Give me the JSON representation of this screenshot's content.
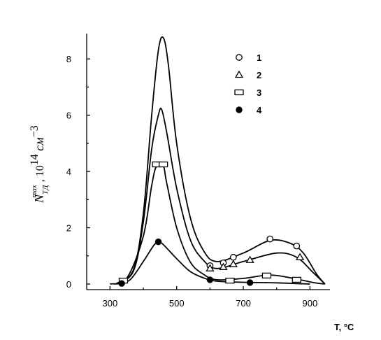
{
  "chart_data": {
    "type": "line",
    "xlabel": "T, °C",
    "ylabel": {
      "main": "N",
      "sub": "ТД",
      "sup": "max",
      "rest": " , 10",
      "exp": "14",
      "unit": " см",
      "unit_exp": "−3"
    },
    "xticks": [
      "300",
      "500",
      "700",
      "900"
    ],
    "xtick_values": [
      300,
      500,
      700,
      900
    ],
    "yticks": [
      "0",
      "2",
      "4",
      "6",
      "8"
    ],
    "ytick_values": [
      0,
      2,
      4,
      6,
      8
    ],
    "xlim": [
      230,
      960
    ],
    "ylim": [
      -0.2,
      8.9
    ],
    "legend_position": "top-right",
    "series": [
      {
        "name": "1",
        "marker": "circle-open",
        "points": [
          [
            600,
            0.65
          ],
          [
            640,
            0.75
          ],
          [
            670,
            0.95
          ],
          [
            780,
            1.6
          ],
          [
            860,
            1.35
          ]
        ],
        "curve": [
          [
            320,
            0.02
          ],
          [
            370,
            0.5
          ],
          [
            400,
            2.5
          ],
          [
            425,
            6.0
          ],
          [
            445,
            8.3
          ],
          [
            460,
            8.75
          ],
          [
            475,
            7.8
          ],
          [
            500,
            5.0
          ],
          [
            540,
            2.4
          ],
          [
            580,
            1.2
          ],
          [
            620,
            0.8
          ],
          [
            700,
            1.1
          ],
          [
            780,
            1.55
          ],
          [
            840,
            1.45
          ],
          [
            880,
            1.1
          ],
          [
            920,
            0.35
          ],
          [
            945,
            0.0
          ]
        ]
      },
      {
        "name": "2",
        "marker": "triangle-open",
        "points": [
          [
            600,
            0.55
          ],
          [
            640,
            0.6
          ],
          [
            670,
            0.7
          ],
          [
            720,
            0.85
          ],
          [
            870,
            0.95
          ]
        ],
        "curve": [
          [
            320,
            0.02
          ],
          [
            370,
            0.45
          ],
          [
            400,
            2.2
          ],
          [
            425,
            4.8
          ],
          [
            445,
            6.0
          ],
          [
            455,
            6.2
          ],
          [
            470,
            5.4
          ],
          [
            500,
            3.4
          ],
          [
            540,
            1.6
          ],
          [
            580,
            0.85
          ],
          [
            620,
            0.55
          ],
          [
            700,
            0.8
          ],
          [
            800,
            1.1
          ],
          [
            860,
            0.95
          ],
          [
            910,
            0.4
          ],
          [
            945,
            0.0
          ]
        ]
      },
      {
        "name": "3",
        "marker": "square-open",
        "points": [
          [
            340,
            0.12
          ],
          [
            440,
            4.25
          ],
          [
            460,
            4.25
          ],
          [
            660,
            0.12
          ],
          [
            770,
            0.3
          ],
          [
            860,
            0.15
          ]
        ],
        "curve": [
          [
            300,
            0.0
          ],
          [
            350,
            0.2
          ],
          [
            400,
            1.7
          ],
          [
            425,
            3.5
          ],
          [
            440,
            4.2
          ],
          [
            460,
            4.2
          ],
          [
            470,
            3.6
          ],
          [
            500,
            2.0
          ],
          [
            540,
            0.8
          ],
          [
            580,
            0.35
          ],
          [
            620,
            0.15
          ],
          [
            700,
            0.2
          ],
          [
            780,
            0.32
          ],
          [
            850,
            0.2
          ],
          [
            910,
            0.05
          ],
          [
            945,
            0.0
          ]
        ]
      },
      {
        "name": "4",
        "marker": "circle-filled",
        "points": [
          [
            335,
            0.02
          ],
          [
            445,
            1.5
          ],
          [
            600,
            0.15
          ],
          [
            720,
            0.05
          ]
        ],
        "curve": [
          [
            320,
            0.0
          ],
          [
            360,
            0.15
          ],
          [
            400,
            0.8
          ],
          [
            430,
            1.35
          ],
          [
            445,
            1.5
          ],
          [
            460,
            1.4
          ],
          [
            500,
            0.9
          ],
          [
            540,
            0.45
          ],
          [
            580,
            0.22
          ],
          [
            620,
            0.1
          ],
          [
            700,
            0.06
          ],
          [
            800,
            0.04
          ],
          [
            900,
            0.0
          ]
        ]
      }
    ]
  }
}
